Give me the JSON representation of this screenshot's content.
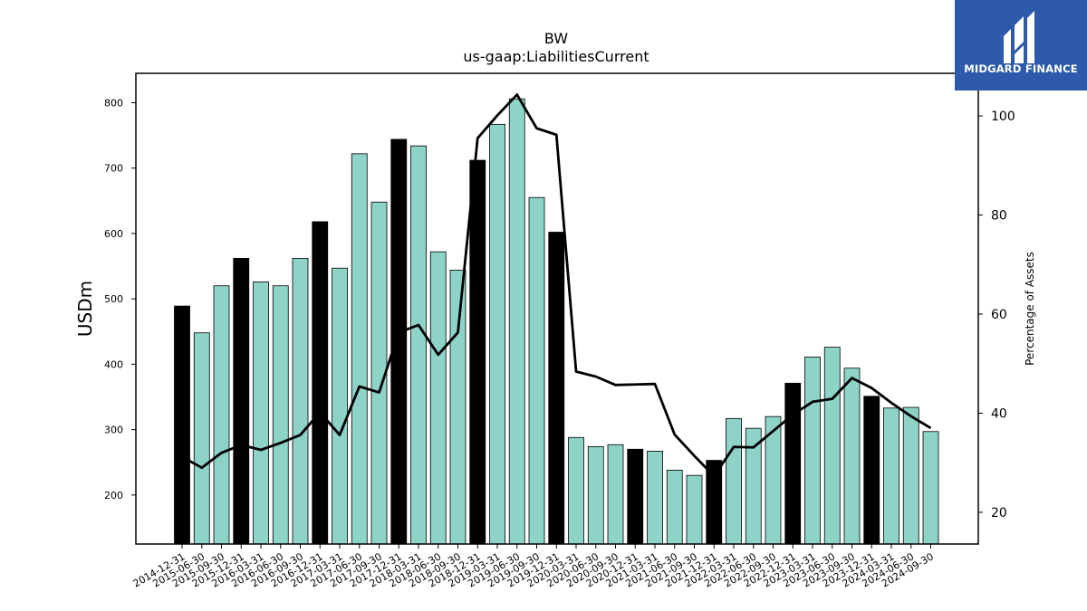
{
  "chart_data": {
    "type": "bar",
    "title": "BW",
    "subtitle": "us-gaap:LiabilitiesCurrent",
    "ylabel": "USDm",
    "y2label": "Percentage of Assets",
    "ylim": [
      125,
      845
    ],
    "y2lim": [
      13.6,
      108.6
    ],
    "yticks": [
      200,
      300,
      400,
      500,
      600,
      700,
      800
    ],
    "y2ticks": [
      20,
      40,
      60,
      80,
      100
    ],
    "grid": false,
    "colors": {
      "bar": "#8dd3c7",
      "bar_highlight": "#000000",
      "line": "#000000",
      "bar_edge": "#000000"
    },
    "categories": [
      "2014-12-31",
      "2015-06-30",
      "2015-09-30",
      "2015-12-31",
      "2016-03-31",
      "2016-06-30",
      "2016-09-30",
      "2016-12-31",
      "2017-03-31",
      "2017-06-30",
      "2017-09-30",
      "2017-12-31",
      "2018-03-31",
      "2018-06-30",
      "2018-09-30",
      "2018-12-31",
      "2019-03-31",
      "2019-06-30",
      "2019-09-30",
      "2019-12-31",
      "2020-03-31",
      "2020-06-30",
      "2020-09-30",
      "2020-12-31",
      "2021-03-31",
      "2021-06-30",
      "2021-09-30",
      "2021-12-31",
      "2022-03-31",
      "2022-06-30",
      "2022-09-30",
      "2022-12-31",
      "2023-03-31",
      "2023-06-30",
      "2023-09-30",
      "2023-12-31",
      "2024-03-31",
      "2024-06-30",
      "2024-09-30"
    ],
    "series": [
      {
        "type": "bar",
        "values": [
          489,
          448,
          520,
          562,
          526,
          520,
          562,
          618,
          547,
          722,
          648,
          744,
          734,
          572,
          544,
          712,
          767,
          806,
          655,
          602,
          288,
          274,
          277,
          270,
          267,
          238,
          230,
          253,
          317,
          302,
          320,
          371,
          411,
          426,
          394,
          351,
          333,
          334,
          297
        ],
        "highlight": [
          true,
          false,
          false,
          true,
          false,
          false,
          false,
          true,
          false,
          false,
          false,
          true,
          false,
          false,
          false,
          true,
          false,
          false,
          false,
          true,
          false,
          false,
          false,
          true,
          false,
          false,
          false,
          true,
          false,
          false,
          false,
          true,
          false,
          false,
          false,
          true,
          false,
          false,
          false
        ]
      },
      {
        "type": "line",
        "axis": "right",
        "values": [
          31.2,
          29.0,
          32.0,
          33.6,
          32.6,
          34.0,
          35.6,
          40.2,
          35.6,
          45.4,
          44.2,
          56.3,
          57.8,
          51.8,
          56.3,
          95.5,
          100.1,
          104.3,
          97.5,
          96.2,
          48.4,
          47.4,
          45.7,
          45.8,
          45.9,
          35.7,
          31.4,
          27.3,
          33.2,
          33.1,
          36.4,
          39.7,
          42.3,
          42.9,
          47.1,
          45.1,
          42.1,
          39.4,
          37.0
        ]
      }
    ]
  },
  "logo": {
    "name": "MIDGARD FINANCE"
  }
}
